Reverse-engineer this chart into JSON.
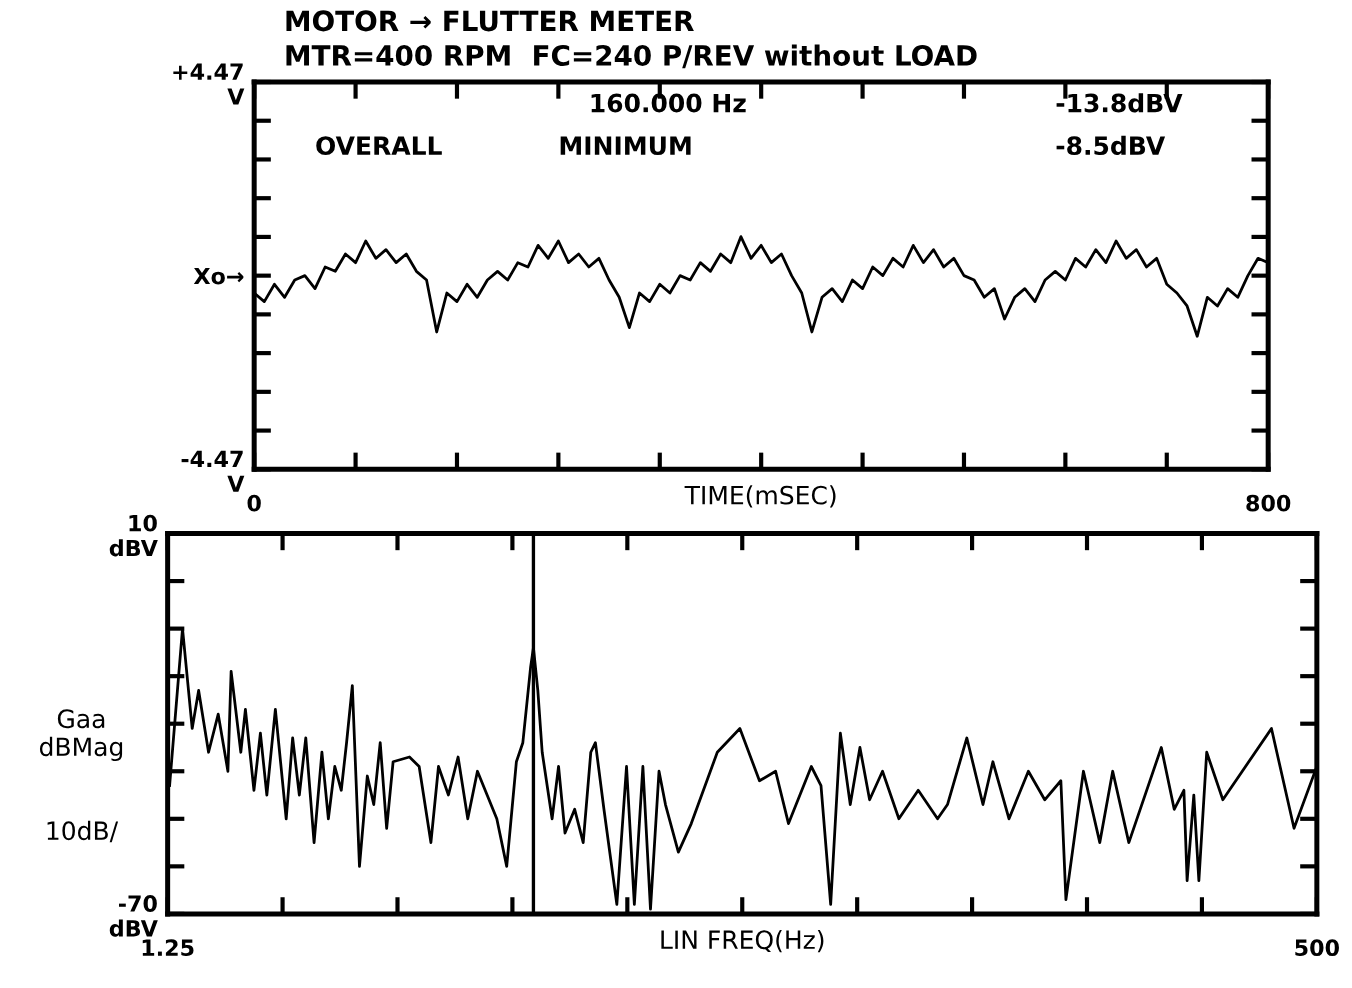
{
  "chart_data": [
    {
      "type": "line",
      "title": "MOTOR → FLUTTER METER",
      "subtitle": "MTR=400 RPM  FC=240 P/REV without LOAD",
      "xlabel": "TIME(mSEC)",
      "annotations": [
        "160.000 Hz",
        "-13.8dBV",
        "OVERALL",
        "MINIMUM",
        "-8.5dBV"
      ],
      "xlim": [
        0,
        800
      ],
      "xticks": [
        {
          "value": 0,
          "label": "0"
        },
        {
          "value": 80,
          "label": null
        },
        {
          "value": 160,
          "label": null
        },
        {
          "value": 240,
          "label": null
        },
        {
          "value": 320,
          "label": null
        },
        {
          "value": 400,
          "label": null
        },
        {
          "value": 480,
          "label": null
        },
        {
          "value": 560,
          "label": null
        },
        {
          "value": 640,
          "label": null
        },
        {
          "value": 720,
          "label": null
        },
        {
          "value": 800,
          "label": "800"
        }
      ],
      "ylim": [
        -4.47,
        4.47
      ],
      "yticks": [
        {
          "value": -4.47,
          "label": "-4.47\nV"
        },
        {
          "value": -3.576,
          "label": null
        },
        {
          "value": -2.682,
          "label": null
        },
        {
          "value": -1.788,
          "label": null
        },
        {
          "value": -0.894,
          "label": null
        },
        {
          "value": 0,
          "label": "Xo→"
        },
        {
          "value": 0.894,
          "label": null
        },
        {
          "value": 1.788,
          "label": null
        },
        {
          "value": 2.682,
          "label": null
        },
        {
          "value": 3.576,
          "label": null
        },
        {
          "value": 4.47,
          "label": "+4.47\nV"
        }
      ],
      "grid": false,
      "legend": false,
      "line_style": "solid",
      "marker": "none",
      "series": [
        {
          "color": "#000000",
          "x": [
            0,
            8,
            16,
            24,
            32,
            40,
            48,
            56,
            64,
            72,
            80,
            88,
            96,
            104,
            112,
            120,
            128,
            136,
            144,
            152,
            160,
            168,
            176,
            184,
            192,
            200,
            208,
            216,
            224,
            232,
            240,
            248,
            256,
            264,
            272,
            280,
            288,
            296,
            304,
            312,
            320,
            328,
            336,
            344,
            352,
            360,
            368,
            376,
            384,
            392,
            400,
            408,
            416,
            424,
            432,
            440,
            448,
            456,
            464,
            472,
            480,
            488,
            496,
            504,
            512,
            520,
            528,
            536,
            544,
            552,
            560,
            568,
            576,
            584,
            592,
            600,
            608,
            616,
            624,
            632,
            640,
            648,
            656,
            664,
            672,
            680,
            688,
            696,
            704,
            712,
            720,
            728,
            736,
            744,
            752,
            760,
            768,
            776,
            784,
            792,
            800
          ],
          "values": [
            -0.4,
            -0.6,
            -0.2,
            -0.5,
            -0.1,
            0.0,
            -0.3,
            0.2,
            0.1,
            0.5,
            0.3,
            0.8,
            0.4,
            0.6,
            0.3,
            0.5,
            0.1,
            -0.1,
            -1.3,
            -0.4,
            -0.6,
            -0.2,
            -0.5,
            -0.1,
            0.1,
            -0.1,
            0.3,
            0.2,
            0.7,
            0.4,
            0.8,
            0.3,
            0.5,
            0.2,
            0.4,
            -0.1,
            -0.5,
            -1.2,
            -0.4,
            -0.6,
            -0.2,
            -0.4,
            0.0,
            -0.1,
            0.3,
            0.1,
            0.5,
            0.3,
            0.9,
            0.4,
            0.7,
            0.3,
            0.5,
            0.0,
            -0.4,
            -1.3,
            -0.5,
            -0.3,
            -0.6,
            -0.1,
            -0.3,
            0.2,
            0.0,
            0.4,
            0.2,
            0.7,
            0.3,
            0.6,
            0.2,
            0.4,
            0.0,
            -0.1,
            -0.5,
            -0.3,
            -1.0,
            -0.5,
            -0.3,
            -0.6,
            -0.1,
            0.1,
            -0.1,
            0.4,
            0.2,
            0.6,
            0.3,
            0.8,
            0.4,
            0.6,
            0.2,
            0.4,
            -0.2,
            -0.4,
            -0.7,
            -1.4,
            -0.5,
            -0.7,
            -0.3,
            -0.5,
            0.0,
            0.4,
            0.3
          ]
        }
      ]
    },
    {
      "type": "line",
      "xlabel": "LIN FREQ(Hz)",
      "ylabel": "Gaa\ndBMag\n\n\n10dB/",
      "xlim": [
        1.25,
        500
      ],
      "xticks": [
        {
          "value": 1.25,
          "label": "1.25"
        },
        {
          "value": 51.125,
          "label": null
        },
        {
          "value": 101,
          "label": null
        },
        {
          "value": 150.875,
          "label": null
        },
        {
          "value": 200.75,
          "label": null
        },
        {
          "value": 250.625,
          "label": null
        },
        {
          "value": 300.5,
          "label": null
        },
        {
          "value": 350.375,
          "label": null
        },
        {
          "value": 400.25,
          "label": null
        },
        {
          "value": 450.125,
          "label": null
        },
        {
          "value": 500,
          "label": "500"
        }
      ],
      "ylim": [
        -70,
        10
      ],
      "yticks": [
        {
          "value": -70,
          "label": "-70\ndBV"
        },
        {
          "value": -60,
          "label": null
        },
        {
          "value": -50,
          "label": null
        },
        {
          "value": -40,
          "label": null
        },
        {
          "value": -30,
          "label": null
        },
        {
          "value": -20,
          "label": null
        },
        {
          "value": -10,
          "label": null
        },
        {
          "value": 0,
          "label": null
        },
        {
          "value": 10,
          "label": "10\ndBV"
        }
      ],
      "ref_lines": [
        {
          "axis": "x",
          "value": 160,
          "color": "#000000"
        }
      ],
      "grid": false,
      "legend": false,
      "line_style": "solid",
      "marker": "none",
      "series": [
        {
          "color": "#000000",
          "x": [
            2.1,
            7.7,
            11.9,
            14.7,
            19.0,
            23.2,
            27.4,
            28.8,
            33.0,
            35.0,
            38.7,
            41.5,
            44.3,
            48.0,
            52.7,
            55.5,
            58.4,
            61.2,
            64.8,
            68.2,
            71.0,
            73.8,
            76.6,
            78.9,
            81.4,
            84.5,
            87.9,
            90.7,
            93.5,
            96.3,
            99.1,
            106.2,
            110.4,
            115.5,
            118.8,
            123.1,
            127.3,
            131.5,
            135.7,
            139.9,
            144.1,
            148.4,
            152.6,
            155.4,
            158.8,
            160,
            161.9,
            163.8,
            168.1,
            170.9,
            173.7,
            177.9,
            181.6,
            184.9,
            186.9,
            190.6,
            196.2,
            200.4,
            203.8,
            207.5,
            210.8,
            214.5,
            217.3,
            222.9,
            228.5,
            239.8,
            249.6,
            258.1,
            265.1,
            270.7,
            280.6,
            284.8,
            289,
            293.2,
            297.5,
            301.7,
            305.9,
            311.5,
            318.6,
            327,
            335.4,
            339.7,
            348.1,
            355.1,
            359.4,
            366.4,
            374.8,
            381.9,
            388.9,
            391.1,
            398.7,
            405.8,
            411.4,
            418.4,
            432.5,
            438.1,
            442.3,
            443.7,
            446.6,
            448.8,
            452.2,
            459.2,
            480.3,
            490.1,
            500
          ],
          "values": [
            -43,
            -10,
            -31,
            -23,
            -36,
            -28,
            -40,
            -19,
            -36,
            -27,
            -44,
            -32,
            -45,
            -27,
            -50,
            -33,
            -45,
            -33,
            -55,
            -36,
            -50,
            -39,
            -44,
            -34,
            -22,
            -60,
            -41,
            -47,
            -34,
            -52,
            -38,
            -37,
            -39,
            -55,
            -39,
            -45,
            -37,
            -50,
            -40,
            -45,
            -50,
            -60,
            -38,
            -34,
            -18,
            -14,
            -23,
            -36,
            -50,
            -39,
            -53,
            -48,
            -55,
            -36,
            -34,
            -48,
            -68,
            -39,
            -68,
            -39,
            -69,
            -40,
            -47,
            -57,
            -51,
            -36,
            -31,
            -42,
            -40,
            -51,
            -39,
            -43,
            -68,
            -32,
            -47,
            -35,
            -46,
            -40,
            -50,
            -44,
            -50,
            -47,
            -33,
            -47,
            -38,
            -50,
            -40,
            -46,
            -42,
            -67,
            -40,
            -55,
            -40,
            -55,
            -35,
            -48,
            -44,
            -63,
            -45,
            -63,
            -36,
            -46,
            -31,
            -52,
            -39
          ]
        }
      ]
    }
  ]
}
